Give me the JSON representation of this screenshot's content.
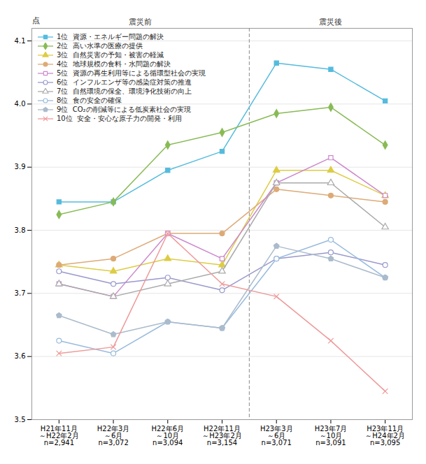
{
  "chart_data": {
    "type": "line",
    "categories": [
      "H21年11月\n～H22年2月\nn=2,941",
      "H22年3月\n～6月\nn=3,072",
      "H22年6月\n～10月\nn=3,094",
      "H22年11月\n～H23年2月\nn=3,154",
      "H23年3月\n～6月\nn=3,071",
      "H23年7月\n～10月\nn=3,091",
      "H23年11月\n～H24年2月\nn=3,095"
    ],
    "ylabel": "点",
    "ylim": [
      3.5,
      4.12
    ],
    "yticks": [
      3.5,
      3.6,
      3.7,
      3.8,
      3.9,
      {
        "value": 4.0,
        "label": "4.0"
      },
      4.1
    ],
    "grid": true,
    "legend": "upper left",
    "annotations": [
      {
        "type": "vline",
        "x": 3.5,
        "line_style": "dashed"
      },
      {
        "text": "震災前"
      },
      {
        "text": "震災後"
      }
    ],
    "series": [
      {
        "name": "1位  資源・エネルギー問題の解決",
        "color": "#55bbdd",
        "marker": "square",
        "values": [
          3.845,
          3.845,
          3.895,
          3.925,
          4.065,
          4.055,
          4.005
        ]
      },
      {
        "name": "2位  高い水準の医療の提供",
        "color": "#88bb55",
        "marker": "diamond",
        "values": [
          3.825,
          3.845,
          3.935,
          3.955,
          3.985,
          3.995,
          3.935
        ]
      },
      {
        "name": "3位  自然災害の予知・被害の軽減",
        "color": "#ddcc44",
        "marker": "triangle",
        "values": [
          3.745,
          3.735,
          3.755,
          3.745,
          3.895,
          3.895,
          3.855
        ]
      },
      {
        "name": "4位  地球規模の食料・水問題の解決",
        "color": "#ddaa77",
        "marker": "circle",
        "values": [
          3.745,
          3.755,
          3.795,
          3.795,
          3.865,
          3.855,
          3.845
        ]
      },
      {
        "name": "5位  資源の再生利用等による循環型社会の実現",
        "color": "#cc88cc",
        "marker": "square-open",
        "values": [
          3.715,
          3.695,
          3.795,
          3.755,
          3.875,
          3.915,
          3.855
        ]
      },
      {
        "name": "6位  インフルエンザ等の感染症対策の推進",
        "color": "#9999cc",
        "marker": "circle-open",
        "values": [
          3.735,
          3.715,
          3.725,
          3.705,
          3.755,
          3.765,
          3.745
        ]
      },
      {
        "name": "7位  自然環境の保全、環境浄化技術の向上",
        "color": "#aaaaaa",
        "marker": "triangle-open",
        "values": [
          3.715,
          3.695,
          3.715,
          3.735,
          3.875,
          3.875,
          3.805
        ]
      },
      {
        "name": "8位  食の安全の確保",
        "color": "#99bbdd",
        "marker": "circle-open",
        "values": [
          3.625,
          3.605,
          3.655,
          3.645,
          3.755,
          3.785,
          3.725
        ]
      },
      {
        "name": "9位  CO₂の削減等による低炭素社会の実現",
        "color": "#aabbcc",
        "marker": "pentagon",
        "values": [
          3.665,
          3.635,
          3.655,
          3.645,
          3.775,
          3.755,
          3.725
        ]
      },
      {
        "name": "10位  安全・安心な原子力の開発・利用",
        "color": "#ee9999",
        "marker": "x",
        "values": [
          3.605,
          3.615,
          3.795,
          3.715,
          3.695,
          3.625,
          3.545
        ]
      }
    ]
  }
}
